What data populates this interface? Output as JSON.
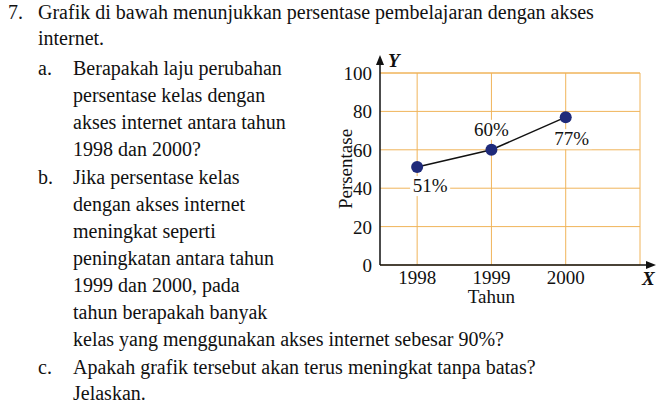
{
  "problem": {
    "number": "7.",
    "intro": [
      "Grafik di bawah menunjukkan persentase pembelajaran dengan akses",
      "internet."
    ],
    "items": [
      {
        "label": "a.",
        "lines": [
          "Berapakah laju perubahan",
          "persentase kelas dengan",
          "akses internet antara tahun",
          "1998 dan 2000?"
        ]
      },
      {
        "label": "b.",
        "lines": [
          "Jika persentase kelas",
          "dengan akses internet",
          "meningkat seperti",
          "peningkatan antara tahun",
          "1999 dan 2000, pada",
          "tahun berapakah banyak",
          "kelas yang menggunakan akses internet sebesar 90%?"
        ]
      },
      {
        "label": "c.",
        "lines": [
          "Apakah grafik tersebut akan terus meningkat tanpa batas?",
          "Jelaskan."
        ]
      }
    ]
  },
  "chart_data": {
    "type": "line",
    "x": [
      1998,
      1999,
      2000
    ],
    "values": [
      51,
      60,
      77
    ],
    "value_labels": [
      "51%",
      "60%",
      "77%"
    ],
    "data_labels": true,
    "xlim": [
      1997.5,
      2001
    ],
    "ylim": [
      0,
      100
    ],
    "xticks": [
      1998,
      1999,
      2000
    ],
    "yticks": [
      0,
      20,
      40,
      60,
      80,
      100
    ],
    "x_label": "Tahun",
    "y_label": "Persentase",
    "x_axis_name": "X",
    "y_axis_name": "Y",
    "grid": true,
    "marker": "circle",
    "color": "#1f2a7a"
  }
}
